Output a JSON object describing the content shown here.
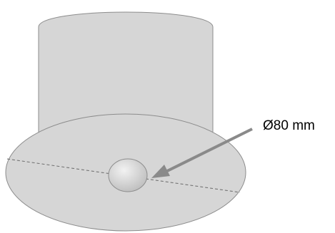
{
  "diagram": {
    "dimension_label": "Ø80 mm",
    "colors": {
      "surface_fill": "#d6d6d6",
      "surface_stroke": "#8c8c8c",
      "knob_fill_light": "#eeeeee",
      "knob_fill_dark": "#bdbdbd",
      "dashed_line": "#6a6a6a",
      "arrow": "#8a8a8a",
      "text": "#000000"
    }
  }
}
